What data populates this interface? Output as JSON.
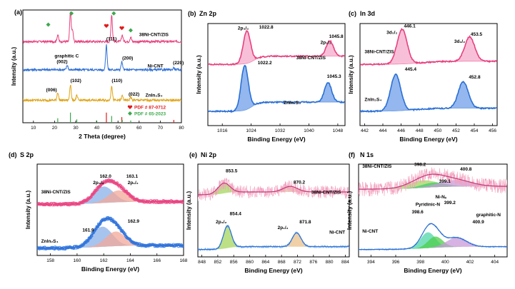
{
  "figure": {
    "background": "#ffffff",
    "axis_color": "#000000"
  },
  "chart_data": [
    {
      "id": "a",
      "type": "line",
      "panel_label": "(a)",
      "xlabel": "2 Theta (degree)",
      "ylabel": "Intensity (a.u.)",
      "xlim": [
        5,
        80
      ],
      "ylim": [
        0,
        100
      ],
      "xticks": [
        10,
        20,
        30,
        40,
        50,
        60,
        70,
        80
      ],
      "series": [
        {
          "name": "38Ni-CNT/ZIS",
          "color": "#e8407e",
          "baseline": 72,
          "peaks": [
            [
              21.5,
              6
            ],
            [
              27.5,
              26
            ],
            [
              28.5,
              10
            ],
            [
              47.0,
              24
            ],
            [
              52.0,
              6
            ],
            [
              56.0,
              4
            ]
          ]
        },
        {
          "name": "Ni-CNT",
          "color": "#2f6fd6",
          "baseline": 47,
          "peaks": [
            [
              26.0,
              4
            ],
            [
              44.5,
              22
            ],
            [
              51.8,
              7
            ],
            [
              76.4,
              2
            ]
          ]
        },
        {
          "name": "ZnIn2S4",
          "color": "#e0a416",
          "baseline": 20,
          "peaks": [
            [
              21.5,
              7
            ],
            [
              27.5,
              14
            ],
            [
              30.5,
              4
            ],
            [
              47.0,
              13
            ],
            [
              52.0,
              4
            ],
            [
              56.0,
              3
            ]
          ]
        }
      ],
      "labels": [
        {
          "text": "38Ni-CNT/ZIS",
          "x": 60,
          "y": 77
        },
        {
          "text": "graphitic C",
          "x": 20,
          "y": 58
        },
        {
          "text": "(002)",
          "x": 21,
          "y": 53
        },
        {
          "text": "(111)",
          "x": 44.5,
          "y": 73
        },
        {
          "text": "(200)",
          "x": 52,
          "y": 56
        },
        {
          "text": "(220)",
          "x": 76,
          "y": 52
        },
        {
          "text": "Ni-CNT",
          "x": 64,
          "y": 49
        },
        {
          "text": "(102)",
          "x": 27.5,
          "y": 36
        },
        {
          "text": "(110)",
          "x": 47,
          "y": 36
        },
        {
          "text": "(006)",
          "x": 16,
          "y": 28
        },
        {
          "text": "(022)",
          "x": 55,
          "y": 24
        },
        {
          "text": "ZnIn₂S₄",
          "x": 63,
          "y": 23
        }
      ],
      "markers": [
        {
          "shape": "diamond",
          "color": "#3ca84d",
          "x": 17,
          "y": 87
        },
        {
          "shape": "diamond",
          "color": "#3ca84d",
          "x": 28,
          "y": 97
        },
        {
          "shape": "diamond",
          "color": "#3ca84d",
          "x": 48,
          "y": 97
        },
        {
          "shape": "diamond",
          "color": "#3ca84d",
          "x": 56,
          "y": 82
        },
        {
          "shape": "heart",
          "color": "#e21a1a",
          "x": 44.5,
          "y": 86
        },
        {
          "shape": "heart",
          "color": "#e21a1a",
          "x": 51.8,
          "y": 84
        }
      ],
      "reference_bars": [
        {
          "color": "#e21a1a",
          "x": 44.5,
          "h": 9
        },
        {
          "color": "#e21a1a",
          "x": 51.8,
          "h": 5
        },
        {
          "color": "#e21a1a",
          "x": 76.4,
          "h": 2.5
        },
        {
          "color": "#3ca84d",
          "x": 21.5,
          "h": 4
        },
        {
          "color": "#3ca84d",
          "x": 27.5,
          "h": 9
        },
        {
          "color": "#3ca84d",
          "x": 30.5,
          "h": 3
        },
        {
          "color": "#3ca84d",
          "x": 39.8,
          "h": 2
        },
        {
          "color": "#3ca84d",
          "x": 47.0,
          "h": 6
        },
        {
          "color": "#3ca84d",
          "x": 52.0,
          "h": 2.5
        },
        {
          "color": "#3ca84d",
          "x": 56.0,
          "h": 2
        }
      ],
      "legend": [
        {
          "shape": "heart",
          "color": "#e21a1a",
          "text": "PDF # 87-0712"
        },
        {
          "shape": "diamond",
          "color": "#3ca84d",
          "text": "PDF # 65-2023"
        }
      ],
      "legend_position": "bottom-right"
    },
    {
      "id": "b",
      "type": "line",
      "panel_label": "(b)",
      "title": "Zn 2p",
      "xlabel": "Binding Energy (eV)",
      "ylabel": "Intensity (a.u.)",
      "xlim": [
        1012,
        1050
      ],
      "ylim": [
        0,
        100
      ],
      "xticks": [
        1016,
        1024,
        1032,
        1040,
        1048
      ],
      "series": [
        {
          "name": "38Ni-CNT/ZIS",
          "color": "#e8407e",
          "fill": "#f28cb8",
          "baseline": 60,
          "peaks": [
            [
              1022.8,
              32,
              1.0
            ],
            [
              1045.8,
              15,
              1.0
            ]
          ],
          "step": 8
        },
        {
          "name": "ZnIn2S4",
          "color": "#2a6fd6",
          "fill": "#3a7be0",
          "baseline": 14,
          "peaks": [
            [
              1022.2,
              44,
              1.0
            ],
            [
              1045.3,
              19,
              1.0
            ]
          ],
          "step": 9
        }
      ],
      "labels": [
        {
          "text": "2p₃/₂",
          "x": 1020.3,
          "y": 94
        },
        {
          "text": "1022.8",
          "x": 1026.2,
          "y": 95
        },
        {
          "text": "2p₁/₂",
          "x": 1043.2,
          "y": 80
        },
        {
          "text": "1045.8",
          "x": 1045.6,
          "y": 86
        },
        {
          "text": "38Ni-CNT/ZIS",
          "x": 1036.5,
          "y": 65
        },
        {
          "text": "1022.2",
          "x": 1025.8,
          "y": 60
        },
        {
          "text": "1045.3",
          "x": 1045.0,
          "y": 47
        },
        {
          "text": "ZnIn₂S₄",
          "x": 1033.0,
          "y": 21
        }
      ]
    },
    {
      "id": "c",
      "type": "line",
      "panel_label": "(c)",
      "title": "In 3d",
      "xlabel": "Binding Energy (eV)",
      "ylabel": "Intensity (a.u.)",
      "xlim": [
        441.5,
        456.5
      ],
      "ylim": [
        0,
        100
      ],
      "xticks": [
        442,
        444,
        446,
        448,
        450,
        452,
        454,
        456
      ],
      "series": [
        {
          "name": "38Ni-CNT/ZIS",
          "color": "#e8407e",
          "fill": "#f28cb8",
          "baseline": 60,
          "peaks": [
            [
              446.1,
              34,
              0.55
            ],
            [
              453.5,
              24,
              0.55
            ]
          ],
          "step": 3
        },
        {
          "name": "ZnIn2S4",
          "color": "#2a6fd6",
          "fill": "#3a7be0",
          "baseline": 14,
          "peaks": [
            [
              445.4,
              36,
              0.55
            ],
            [
              452.8,
              26,
              0.55
            ]
          ],
          "step": 3
        }
      ],
      "labels": [
        {
          "text": "446.1",
          "x": 446.3,
          "y": 96
        },
        {
          "text": "3d₅/₂",
          "x": 444.4,
          "y": 90
        },
        {
          "text": "453.5",
          "x": 453.6,
          "y": 88
        },
        {
          "text": "3d₃/₂",
          "x": 451.8,
          "y": 81
        },
        {
          "text": "38Ni-CNT/ZIS",
          "x": 442.0,
          "y": 71
        },
        {
          "text": "445.4",
          "x": 446.4,
          "y": 54
        },
        {
          "text": "452.8",
          "x": 453.4,
          "y": 46
        },
        {
          "text": "ZnIn₂S₄",
          "x": 442.0,
          "y": 24
        }
      ]
    },
    {
      "id": "d",
      "type": "line",
      "panel_label": "(d)",
      "title": "S 2p",
      "xlabel": "Binding Energy (eV)",
      "ylabel": "Intensity (a.u.)",
      "xlim": [
        157,
        168
      ],
      "ylim": [
        0,
        100
      ],
      "xticks": [
        158,
        160,
        162,
        164,
        166,
        168
      ],
      "series": [
        {
          "name": "38Ni-CNT/ZIS",
          "color": "#e8407e",
          "point_color": "#ea4e88",
          "baseline": 56,
          "components": [
            [
              162.0,
              18,
              0.75,
              "#8ab0e8"
            ],
            [
              163.1,
              13,
              0.75,
              "#f3a898"
            ]
          ]
        },
        {
          "name": "ZnIn2S4",
          "color": "#2a6fd6",
          "point_color": "#3a7be0",
          "baseline": 8,
          "components": [
            [
              161.9,
              22,
              0.75,
              "#8ab0e8"
            ],
            [
              162.9,
              16,
              0.75,
              "#f3a898"
            ]
          ]
        }
      ],
      "labels": [
        {
          "text": "162.0",
          "x": 161.7,
          "y": 85
        },
        {
          "text": "163.1",
          "x": 163.7,
          "y": 85
        },
        {
          "text": "2p₃/₂",
          "x": 161.2,
          "y": 78
        },
        {
          "text": "2p₁/₂",
          "x": 163.8,
          "y": 78
        },
        {
          "text": "38Ni-CNT/ZIS",
          "x": 157.3,
          "y": 68
        },
        {
          "text": "161.9",
          "x": 160.4,
          "y": 26
        },
        {
          "text": "162.9",
          "x": 163.8,
          "y": 36
        },
        {
          "text": "ZnIn₂S₄",
          "x": 157.3,
          "y": 14
        }
      ]
    },
    {
      "id": "e",
      "type": "line",
      "panel_label": "(e)",
      "title": "Ni 2p",
      "xlabel": "Binding Energy (eV)",
      "ylabel": "Intensity (a.u.)",
      "xlim": [
        847,
        885
      ],
      "ylim": [
        0,
        100
      ],
      "xticks": [
        848,
        852,
        856,
        860,
        864,
        868,
        872,
        876,
        880,
        884
      ],
      "series": [
        {
          "name": "38Ni-CNT/ZIS",
          "color": "#f2a0bd",
          "fit_color": "#c03a77",
          "baseline": 67,
          "noise": 7,
          "components": [
            [
              853.5,
              11,
              1.5,
              "#a4d65e"
            ],
            [
              870.2,
              6,
              1.8,
              "#e7b8a6"
            ]
          ]
        },
        {
          "name": "Ni-CNT",
          "color": "#6aa5e6",
          "fit_color": "#2a6fd6",
          "baseline": 8,
          "noise": 1.5,
          "components": [
            [
              854.4,
              24,
              1.0,
              "#a4d65e"
            ],
            [
              871.8,
              15,
              1.1,
              "#e9c08a"
            ]
          ]
        }
      ],
      "labels": [
        {
          "text": "853.5",
          "x": 854.0,
          "y": 91
        },
        {
          "text": "870.2",
          "x": 871.0,
          "y": 79
        },
        {
          "text": "38Ni-CNT/ZIS",
          "x": 875.5,
          "y": 68
        },
        {
          "text": "854.4",
          "x": 855.0,
          "y": 45
        },
        {
          "text": "2p₃/₂",
          "x": 851.5,
          "y": 36
        },
        {
          "text": "871.8",
          "x": 872.5,
          "y": 36
        },
        {
          "text": "2p₁/₂",
          "x": 867.0,
          "y": 30
        },
        {
          "text": "Ni-CNT",
          "x": 880.0,
          "y": 25
        }
      ]
    },
    {
      "id": "f",
      "type": "line",
      "panel_label": "(f)",
      "title": "N 1s",
      "xlabel": "Binding Energy (eV)",
      "ylabel": "Intensity (a.u.)",
      "xlim": [
        393,
        405
      ],
      "ylim": [
        0,
        100
      ],
      "xticks": [
        394,
        396,
        398,
        400,
        402,
        404
      ],
      "series": [
        {
          "name": "38Ni-CNT/ZIS",
          "color": "#f2a0bd",
          "fit_color": "#c03a77",
          "baseline": 73,
          "noise": 8,
          "components": [
            [
              398.2,
              8,
              1.2,
              "#a4d65e"
            ],
            [
              399.1,
              5,
              1.0,
              "#3fcf6e"
            ],
            [
              400.8,
              7,
              1.3,
              "#c89ad8"
            ]
          ]
        },
        {
          "name": "Ni-CNT",
          "color": "#2a6fd6",
          "fit_color": "#2a6fd6",
          "baseline": 8,
          "noise": 0.7,
          "components": [
            [
              398.6,
              17,
              0.6,
              "#4fd6a8"
            ],
            [
              399.2,
              12,
              0.6,
              "#4ccf4a"
            ],
            [
              400.9,
              10,
              0.8,
              "#c89ad8"
            ]
          ]
        }
      ],
      "labels": [
        {
          "text": "38Ni-CNT/ZIS",
          "x": 393.3,
          "y": 96
        },
        {
          "text": "398.2",
          "x": 397.5,
          "y": 98
        },
        {
          "text": "399.1",
          "x": 399.5,
          "y": 80
        },
        {
          "text": "400.8",
          "x": 401.2,
          "y": 93
        },
        {
          "text": "Ni-Nₓ",
          "x": 399.2,
          "y": 63
        },
        {
          "text": "399.2",
          "x": 399.9,
          "y": 57
        },
        {
          "text": "Pyridinic-N",
          "x": 397.6,
          "y": 55
        },
        {
          "text": "398.6",
          "x": 397.3,
          "y": 47
        },
        {
          "text": "graphitic-N",
          "x": 402.5,
          "y": 44
        },
        {
          "text": "400.9",
          "x": 402.2,
          "y": 36
        },
        {
          "text": "Ni-CNT",
          "x": 393.3,
          "y": 26
        }
      ]
    }
  ]
}
